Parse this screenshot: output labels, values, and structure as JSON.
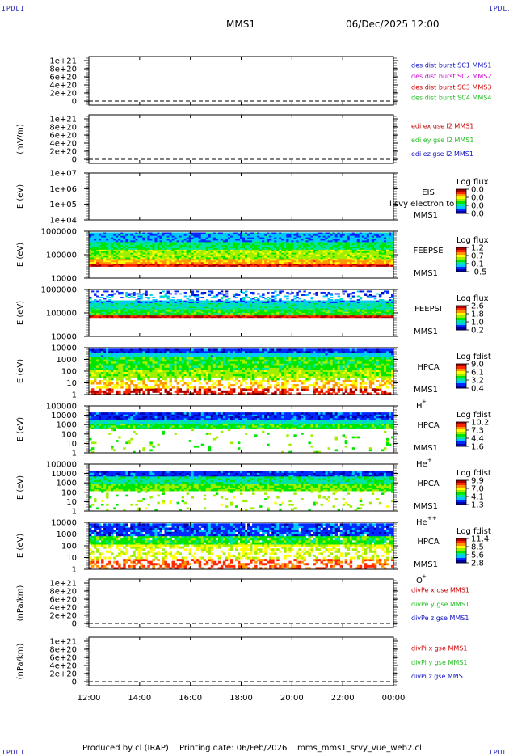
{
  "corner_label": "IPDLI",
  "header": {
    "spacecraft": "MMS1",
    "datetime": "06/Dec/2025 12:00"
  },
  "footer": {
    "producer": "Produced by cl (IRAP)",
    "printing_date": "Printing date: 06/Feb/2026",
    "filename": "mms_mms1_srvy_vue_web2.cl"
  },
  "colors": {
    "spec": [
      "#ffffff",
      "#0000aa",
      "#0028ff",
      "#00c8ff",
      "#00e6a0",
      "#00e600",
      "#a0ee00",
      "#ffff00",
      "#ff9600",
      "#ff2800",
      "#aa0000"
    ],
    "frame": "#000000",
    "labels": {
      "red": "#cc0000",
      "green": "#22bb22",
      "blue": "#1010c0",
      "magenta": "#cc00cc"
    }
  },
  "chart_data": {
    "type": "heatmap",
    "time_axis": {
      "ticks": [
        "12:00",
        "14:00",
        "16:00",
        "18:00",
        "20:00",
        "22:00",
        "00:00"
      ],
      "range_hours": [
        12,
        24
      ]
    },
    "panels": [
      {
        "id": "des-dist",
        "kind": "empty",
        "ylabel": "",
        "yticks": [
          "1e+21",
          "8e+20",
          "6e+20",
          "4e+20",
          "2e+20",
          "0"
        ],
        "ymax": 1e+21,
        "legend": [
          {
            "text": "des dist burst SC1 MMS1",
            "color": "blue"
          },
          {
            "text": "des dist burst SC2 MMS2",
            "color": "magenta"
          },
          {
            "text": "des dist burst SC3 MMS3",
            "color": "red"
          },
          {
            "text": "des dist burst SC4 MMS4",
            "color": "green"
          }
        ]
      },
      {
        "id": "edi",
        "kind": "empty",
        "ylabel": "(mV/m)",
        "yticks": [
          "1e+21",
          "8e+20",
          "6e+20",
          "4e+20",
          "2e+20",
          "0"
        ],
        "ymax": 1e+21,
        "legend": [
          {
            "text": "edi ex gse l2 MMS1",
            "color": "red"
          },
          {
            "text": "edi ey gse l2 MMS1",
            "color": "green"
          },
          {
            "text": "edi ez gse l2 MMS1",
            "color": "blue"
          }
        ]
      },
      {
        "id": "eis",
        "kind": "spectrogram-empty",
        "ylabel": "E (eV)",
        "yticks": [
          "1e+07",
          "1e+06",
          "1e+05",
          "1e+04"
        ],
        "ylim_log": [
          4,
          7
        ],
        "instrument": [
          "EIS",
          "MMS1"
        ],
        "overlay_text": "l svy electron to",
        "cbar_title": "Log flux",
        "cbar_ticks": [
          "0.0",
          "0.0",
          "0.0",
          "0.0"
        ]
      },
      {
        "id": "feeps-e",
        "kind": "spectrogram",
        "ylabel": "E (eV)",
        "yticks": [
          "1000000",
          "100000",
          "10000"
        ],
        "ylim_log": [
          4,
          6
        ],
        "instrument": [
          "FEEPSE",
          "MMS1"
        ],
        "cbar_title": "Log flux",
        "cbar_ticks": [
          "1.2",
          "0.7",
          "0.1",
          "-0.5"
        ],
        "data_log_e_range": [
          4.5,
          5.95
        ],
        "profile": "feepse"
      },
      {
        "id": "feeps-i",
        "kind": "spectrogram",
        "ylabel": "E (eV)",
        "yticks": [
          "1000000",
          "100000",
          "10000"
        ],
        "ylim_log": [
          4,
          6
        ],
        "instrument": [
          "FEEPSI",
          "MMS1"
        ],
        "cbar_title": "Log flux",
        "cbar_ticks": [
          "2.6",
          "1.8",
          "1.0",
          "0.2"
        ],
        "data_log_e_range": [
          4.8,
          5.95
        ],
        "profile": "feepsi"
      },
      {
        "id": "hpca-h",
        "kind": "spectrogram",
        "ylabel": "E (eV)",
        "yticks": [
          "10000",
          "1000",
          "100",
          "10",
          "1"
        ],
        "ylim_log": [
          0,
          4.4
        ],
        "instrument": [
          "HPCA",
          "MMS1"
        ],
        "species": "H",
        "species_sup": "+",
        "cbar_title": "Log fdist",
        "cbar_ticks": [
          "9.0",
          "6.1",
          "3.2",
          "0.4"
        ],
        "data_log_e_range": [
          0,
          4.3
        ],
        "profile": "hpca_h"
      },
      {
        "id": "hpca-he",
        "kind": "spectrogram",
        "ylabel": "E (eV)",
        "yticks": [
          "100000",
          "10000",
          "1000",
          "100",
          "10",
          "1"
        ],
        "ylim_log": [
          0,
          5
        ],
        "instrument": [
          "HPCA",
          "MMS1"
        ],
        "species": "He",
        "species_sup": "+",
        "cbar_title": "Log fdist",
        "cbar_ticks": [
          "10.2",
          "7.3",
          "4.4",
          "1.6"
        ],
        "data_log_e_range": [
          0,
          4.3
        ],
        "profile": "hpca_he"
      },
      {
        "id": "hpca-hepp",
        "kind": "spectrogram",
        "ylabel": "E (eV)",
        "yticks": [
          "100000",
          "10000",
          "1000",
          "100",
          "10",
          "1"
        ],
        "ylim_log": [
          0,
          5
        ],
        "instrument": [
          "HPCA",
          "MMS1"
        ],
        "species": "He",
        "species_sup": "++",
        "cbar_title": "Log fdist",
        "cbar_ticks": [
          "9.9",
          "7.0",
          "4.1",
          "1.3"
        ],
        "data_log_e_range": [
          0,
          4.3
        ],
        "profile": "hpca_hepp"
      },
      {
        "id": "hpca-o",
        "kind": "spectrogram",
        "ylabel": "E (eV)",
        "yticks": [
          "10000",
          "1000",
          "100",
          "10",
          "1"
        ],
        "ylim_log": [
          0,
          4.4
        ],
        "instrument": [
          "HPCA",
          "MMS1"
        ],
        "species": "O",
        "species_sup": "+",
        "cbar_title": "Log fdist",
        "cbar_ticks": [
          "11.4",
          "8.5",
          "5.6",
          "2.8"
        ],
        "data_log_e_range": [
          0,
          4.3
        ],
        "profile": "hpca_o"
      },
      {
        "id": "divpe",
        "kind": "empty",
        "ylabel": "(nPa/km)",
        "yticks": [
          "1e+21",
          "8e+20",
          "6e+20",
          "4e+20",
          "2e+20",
          "0"
        ],
        "ymax": 1e+21,
        "legend": [
          {
            "text": "divPe x gse MMS1",
            "color": "red"
          },
          {
            "text": "divPe y gse MMS1",
            "color": "green"
          },
          {
            "text": "divPe z gse MMS1",
            "color": "blue"
          }
        ]
      },
      {
        "id": "divpi",
        "kind": "empty",
        "ylabel": "(nPa/km)",
        "yticks": [
          "1e+21",
          "8e+20",
          "6e+20",
          "4e+20",
          "2e+20",
          "0"
        ],
        "ymax": 1e+21,
        "legend": [
          {
            "text": "divPi x gse MMS1",
            "color": "red"
          },
          {
            "text": "divPi y gse MMS1",
            "color": "green"
          },
          {
            "text": "divPi z gse MMS1",
            "color": "blue"
          }
        ]
      }
    ]
  }
}
